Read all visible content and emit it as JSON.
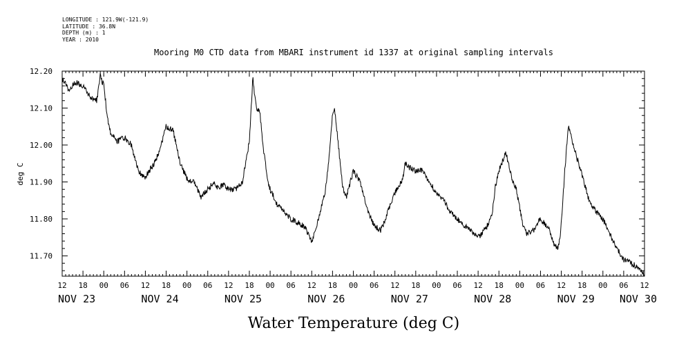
{
  "meta": {
    "longitude": "LONGITUDE : 121.9W(-121.9)",
    "latitude": "LATITUDE : 36.8N",
    "depth": "DEPTH (m) : 1",
    "year": "YEAR : 2010"
  },
  "chart_data": {
    "type": "line",
    "title": "Mooring M0 CTD data from MBARI instrument id 1337 at original sampling intervals",
    "xlabel": "Water Temperature (deg C)",
    "ylabel": "deg C",
    "ylim": [
      11.645,
      12.2
    ],
    "y_ticks": [
      "11.70",
      "11.80",
      "11.90",
      "12.00",
      "12.10",
      "12.20"
    ],
    "xlim_hours": [
      0,
      168
    ],
    "x_hour_labels": [
      "12",
      "18",
      "00",
      "06",
      "12",
      "18",
      "00",
      "06",
      "12",
      "18",
      "00",
      "06",
      "12",
      "18",
      "00",
      "06",
      "12",
      "18",
      "00",
      "06",
      "12",
      "18",
      "00",
      "06",
      "12",
      "18",
      "00",
      "06",
      "12"
    ],
    "x_day_labels": [
      {
        "label": "NOV 23",
        "hour": 0
      },
      {
        "label": "NOV 24",
        "hour": 24
      },
      {
        "label": "NOV 25",
        "hour": 48
      },
      {
        "label": "NOV 26",
        "hour": 72
      },
      {
        "label": "NOV 27",
        "hour": 96
      },
      {
        "label": "NOV 28",
        "hour": 120
      },
      {
        "label": "NOV 29",
        "hour": 144
      },
      {
        "label": "NOV 30",
        "hour": 162
      }
    ],
    "grid": false,
    "series": [
      {
        "x": [
          0,
          2,
          4,
          6,
          8,
          10,
          11,
          11.5,
          12,
          12.5,
          13,
          14,
          16,
          18,
          20,
          21,
          22,
          23,
          24,
          25,
          26,
          28,
          30,
          32,
          34,
          35,
          36,
          37,
          38,
          40,
          42,
          44,
          45,
          46,
          47,
          48,
          50,
          52,
          54,
          55,
          56,
          57,
          57.5,
          58,
          58.5,
          59,
          60,
          61,
          62,
          64,
          66,
          68,
          70,
          72,
          74,
          76,
          77,
          78,
          78.5,
          79,
          80,
          81,
          82,
          84,
          86,
          88,
          90,
          92,
          94,
          96,
          97,
          98,
          99,
          100,
          102,
          104,
          106,
          108,
          110,
          112,
          114,
          116,
          118,
          120,
          122,
          124,
          125,
          126,
          128,
          130,
          131,
          132,
          133,
          134,
          136,
          138,
          140,
          141,
          142,
          143,
          143.5,
          144,
          144.5,
          145,
          146,
          147,
          148,
          150,
          152,
          154,
          156,
          158,
          160,
          162,
          164,
          166,
          167,
          168
        ],
        "y": [
          12.18,
          12.15,
          12.17,
          12.16,
          12.13,
          12.12,
          12.19,
          12.17,
          12.17,
          12.12,
          12.08,
          12.03,
          12.01,
          12.02,
          12.0,
          11.96,
          11.93,
          11.92,
          11.91,
          11.93,
          11.94,
          11.98,
          12.05,
          12.04,
          11.95,
          11.93,
          11.91,
          11.9,
          11.9,
          11.86,
          11.88,
          11.9,
          11.88,
          11.89,
          11.89,
          11.88,
          11.88,
          11.9,
          12.01,
          12.18,
          12.1,
          12.09,
          12.04,
          11.99,
          11.97,
          11.92,
          11.88,
          11.86,
          11.84,
          11.82,
          11.8,
          11.79,
          11.78,
          11.74,
          11.8,
          11.88,
          11.97,
          12.08,
          12.1,
          12.06,
          11.97,
          11.88,
          11.86,
          11.93,
          11.9,
          11.83,
          11.78,
          11.77,
          11.82,
          11.87,
          11.89,
          11.9,
          11.95,
          11.94,
          11.93,
          11.93,
          11.9,
          11.87,
          11.85,
          11.82,
          11.8,
          11.78,
          11.77,
          11.75,
          11.77,
          11.81,
          11.89,
          11.93,
          11.98,
          11.9,
          11.88,
          11.83,
          11.78,
          11.76,
          11.77,
          11.8,
          11.78,
          11.76,
          11.73,
          11.72,
          11.74,
          11.79,
          11.86,
          11.93,
          12.05,
          12.02,
          11.98,
          11.92,
          11.85,
          11.82,
          11.8,
          11.76,
          11.72,
          11.69,
          11.68,
          11.67,
          11.66,
          11.65
        ],
        "noise_amplitude": 0.008
      }
    ]
  }
}
